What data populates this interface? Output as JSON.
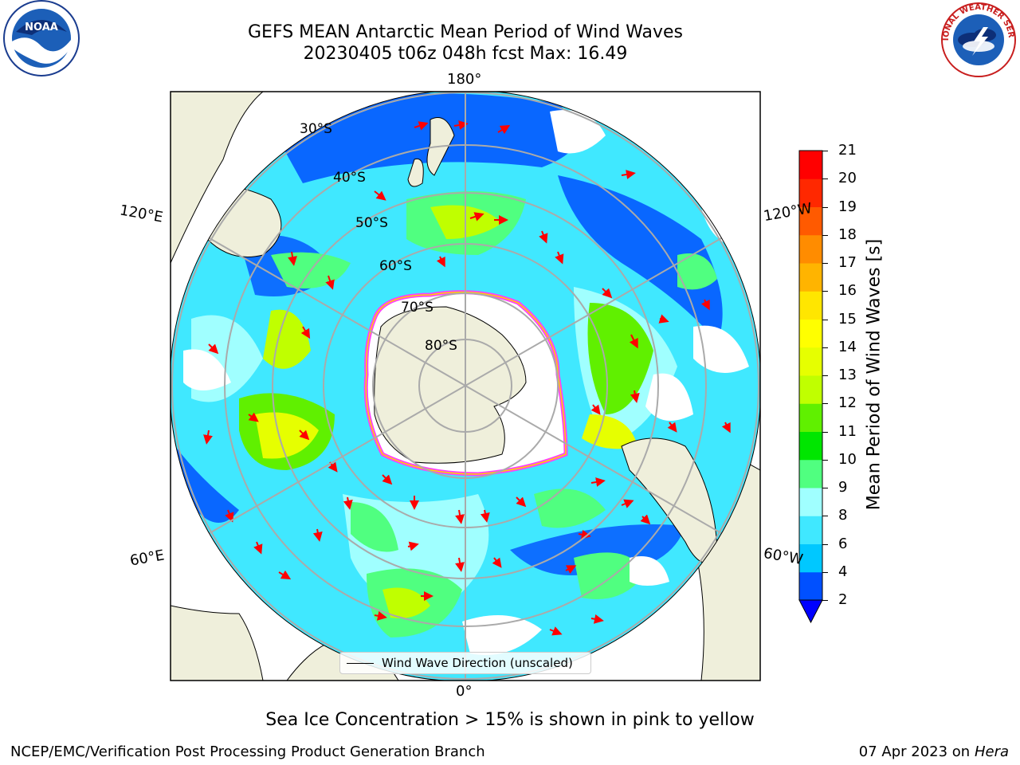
{
  "header": {
    "title_line1": "GEFS MEAN Antarctic Mean Period of Wind Waves",
    "title_line2": "20230405 t06z 048h fcst   Max: 16.49"
  },
  "logos": {
    "noaa_text": "NOAA",
    "nws_text": "NATIONAL WEATHER SERVICE"
  },
  "map": {
    "lon_labels": {
      "top": "180°",
      "bottom": "0°",
      "left_upper": "120°E",
      "left_lower": "60°E",
      "right_upper": "120°W",
      "right_lower": "60°W"
    },
    "lat_labels": [
      "30°S",
      "40°S",
      "50°S",
      "60°S",
      "70°S",
      "80°S"
    ],
    "legend_label": "Wind Wave Direction (unscaled)"
  },
  "colorbar": {
    "label": "Mean Period of Wind Waves [s]",
    "ticks": [
      "21",
      "20",
      "19",
      "18",
      "17",
      "16",
      "15",
      "14",
      "13",
      "12",
      "11",
      "10",
      "9",
      "8",
      "6",
      "4",
      "2"
    ],
    "bounds": [
      2,
      4,
      6,
      8,
      9,
      10,
      11,
      12,
      13,
      14,
      15,
      16,
      17,
      18,
      19,
      20,
      21
    ],
    "colors": [
      "#0050ff",
      "#00c8ff",
      "#40e8ff",
      "#a0ffff",
      "#50ff80",
      "#00e600",
      "#60f000",
      "#c0ff00",
      "#e6ff00",
      "#ffff00",
      "#ffe600",
      "#ffb400",
      "#ff8c00",
      "#ff5a00",
      "#ff2800",
      "#ff0000"
    ],
    "under_color": "#0000ff"
  },
  "caption": "Sea Ice Concentration > 15% is shown in pink to yellow",
  "footer": {
    "left": "NCEP/EMC/Verification Post Processing Product Generation Branch",
    "right_prefix": "07 Apr 2023 on ",
    "right_machine": "Hera"
  }
}
